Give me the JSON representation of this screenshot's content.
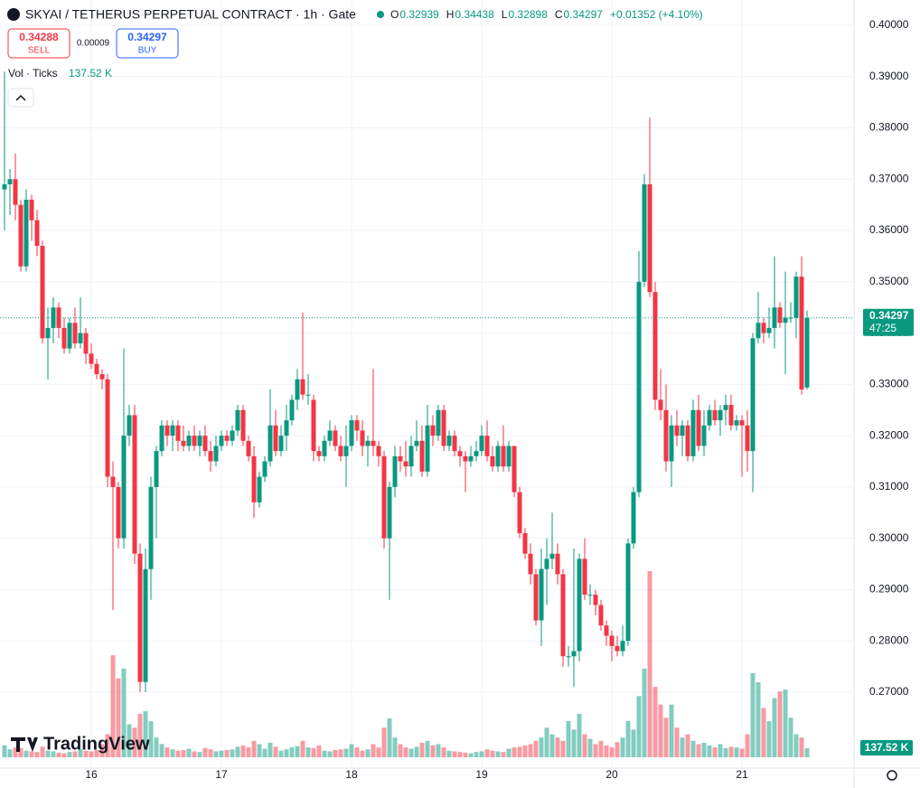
{
  "chart_data": {
    "type": "candlestick",
    "title": "SKYAI / TETHERUS PERPETUAL CONTRACT · 1h · Gate",
    "legend_labels": [
      "O",
      "H",
      "L",
      "C"
    ],
    "change": "+0.01352 (+4.10%)",
    "sell_price": "0.34288",
    "sell_label": "SELL",
    "spread": "0.00009",
    "buy_price": "0.34297",
    "buy_label": "BUY",
    "volume_title": "Vol · Ticks",
    "volume_label": "137.52 K",
    "volume_axis_label": "137.52 K",
    "countdown": "47:25",
    "watermark": "TradingView",
    "up_color": "#089981",
    "down_color": "#f23645",
    "ylim": [
      0.2552,
      0.40493
    ],
    "yticks": [
      {
        "value": 0.27,
        "label": "0.27000"
      },
      {
        "value": 0.28,
        "label": "0.28000"
      },
      {
        "value": 0.29,
        "label": "0.29000"
      },
      {
        "value": 0.3,
        "label": "0.30000"
      },
      {
        "value": 0.31,
        "label": "0.31000"
      },
      {
        "value": 0.32,
        "label": "0.32000"
      },
      {
        "value": 0.33,
        "label": "0.33000"
      },
      {
        "value": 0.34,
        "label": "0.34000"
      },
      {
        "value": 0.35,
        "label": "0.35000"
      },
      {
        "value": 0.36,
        "label": "0.36000"
      },
      {
        "value": 0.37,
        "label": "0.37000"
      },
      {
        "value": 0.38,
        "label": "0.38000"
      },
      {
        "value": 0.39,
        "label": "0.39000"
      },
      {
        "value": 0.4,
        "label": "0.40000"
      }
    ],
    "xticks": [
      {
        "value": 16,
        "label": "16"
      },
      {
        "value": 40,
        "label": "17"
      },
      {
        "value": 64,
        "label": "18"
      },
      {
        "value": 88,
        "label": "19"
      },
      {
        "value": 112,
        "label": "20"
      },
      {
        "value": 136,
        "label": "21"
      }
    ],
    "ohlc": [
      [
        0.368,
        0.391,
        0.36,
        0.369
      ],
      [
        0.369,
        0.372,
        0.363,
        0.37
      ],
      [
        0.37,
        0.375,
        0.362,
        0.365
      ],
      [
        0.365,
        0.366,
        0.352,
        0.353
      ],
      [
        0.353,
        0.368,
        0.352,
        0.366
      ],
      [
        0.366,
        0.367,
        0.358,
        0.362
      ],
      [
        0.362,
        0.364,
        0.355,
        0.357
      ],
      [
        0.357,
        0.358,
        0.338,
        0.339
      ],
      [
        0.339,
        0.345,
        0.331,
        0.341
      ],
      [
        0.341,
        0.347,
        0.338,
        0.345
      ],
      [
        0.345,
        0.346,
        0.339,
        0.341
      ],
      [
        0.341,
        0.343,
        0.336,
        0.337
      ],
      [
        0.337,
        0.343,
        0.336,
        0.342
      ],
      [
        0.342,
        0.345,
        0.337,
        0.338
      ],
      [
        0.338,
        0.347,
        0.337,
        0.34
      ],
      [
        0.34,
        0.341,
        0.334,
        0.336
      ],
      [
        0.336,
        0.338,
        0.333,
        0.334
      ],
      [
        0.334,
        0.335,
        0.331,
        0.332
      ],
      [
        0.332,
        0.333,
        0.329,
        0.331
      ],
      [
        0.331,
        0.332,
        0.31,
        0.312
      ],
      [
        0.312,
        0.315,
        0.286,
        0.31
      ],
      [
        0.31,
        0.311,
        0.298,
        0.3
      ],
      [
        0.3,
        0.337,
        0.298,
        0.32
      ],
      [
        0.32,
        0.326,
        0.318,
        0.324
      ],
      [
        0.324,
        0.326,
        0.295,
        0.297
      ],
      [
        0.297,
        0.299,
        0.27,
        0.272
      ],
      [
        0.272,
        0.298,
        0.27,
        0.294
      ],
      [
        0.294,
        0.312,
        0.288,
        0.31
      ],
      [
        0.31,
        0.318,
        0.3,
        0.317
      ],
      [
        0.317,
        0.323,
        0.316,
        0.322
      ],
      [
        0.322,
        0.323,
        0.318,
        0.32
      ],
      [
        0.32,
        0.323,
        0.317,
        0.322
      ],
      [
        0.322,
        0.323,
        0.317,
        0.319
      ],
      [
        0.319,
        0.322,
        0.317,
        0.318
      ],
      [
        0.318,
        0.321,
        0.317,
        0.32
      ],
      [
        0.32,
        0.322,
        0.317,
        0.318
      ],
      [
        0.318,
        0.321,
        0.316,
        0.32
      ],
      [
        0.32,
        0.322,
        0.316,
        0.317
      ],
      [
        0.317,
        0.319,
        0.313,
        0.315
      ],
      [
        0.315,
        0.32,
        0.314,
        0.318
      ],
      [
        0.318,
        0.321,
        0.317,
        0.32
      ],
      [
        0.32,
        0.321,
        0.318,
        0.319
      ],
      [
        0.319,
        0.322,
        0.318,
        0.321
      ],
      [
        0.321,
        0.326,
        0.32,
        0.325
      ],
      [
        0.325,
        0.326,
        0.318,
        0.319
      ],
      [
        0.319,
        0.32,
        0.315,
        0.316
      ],
      [
        0.316,
        0.318,
        0.304,
        0.307
      ],
      [
        0.307,
        0.313,
        0.306,
        0.312
      ],
      [
        0.312,
        0.316,
        0.311,
        0.315
      ],
      [
        0.315,
        0.329,
        0.314,
        0.322
      ],
      [
        0.322,
        0.325,
        0.316,
        0.317
      ],
      [
        0.317,
        0.322,
        0.316,
        0.32
      ],
      [
        0.32,
        0.326,
        0.317,
        0.323
      ],
      [
        0.323,
        0.328,
        0.322,
        0.327
      ],
      [
        0.327,
        0.333,
        0.325,
        0.331
      ],
      [
        0.331,
        0.344,
        0.327,
        0.328
      ],
      [
        0.328,
        0.332,
        0.326,
        0.328
      ],
      [
        0.327,
        0.328,
        0.315,
        0.317
      ],
      [
        0.317,
        0.318,
        0.315,
        0.316
      ],
      [
        0.316,
        0.32,
        0.315,
        0.319
      ],
      [
        0.319,
        0.323,
        0.318,
        0.321
      ],
      [
        0.321,
        0.322,
        0.317,
        0.318
      ],
      [
        0.318,
        0.32,
        0.315,
        0.316
      ],
      [
        0.316,
        0.322,
        0.31,
        0.318
      ],
      [
        0.318,
        0.324,
        0.317,
        0.323
      ],
      [
        0.323,
        0.324,
        0.319,
        0.321
      ],
      [
        0.321,
        0.323,
        0.316,
        0.318
      ],
      [
        0.318,
        0.32,
        0.314,
        0.319
      ],
      [
        0.319,
        0.333,
        0.316,
        0.318
      ],
      [
        0.318,
        0.319,
        0.314,
        0.316
      ],
      [
        0.316,
        0.317,
        0.298,
        0.3
      ],
      [
        0.3,
        0.311,
        0.288,
        0.31
      ],
      [
        0.31,
        0.318,
        0.308,
        0.316
      ],
      [
        0.316,
        0.318,
        0.313,
        0.315
      ],
      [
        0.315,
        0.319,
        0.312,
        0.314
      ],
      [
        0.314,
        0.32,
        0.312,
        0.318
      ],
      [
        0.318,
        0.323,
        0.317,
        0.319
      ],
      [
        0.319,
        0.322,
        0.312,
        0.313
      ],
      [
        0.313,
        0.326,
        0.312,
        0.322
      ],
      [
        0.322,
        0.324,
        0.318,
        0.32
      ],
      [
        0.32,
        0.326,
        0.319,
        0.325
      ],
      [
        0.325,
        0.326,
        0.317,
        0.318
      ],
      [
        0.318,
        0.321,
        0.317,
        0.32
      ],
      [
        0.32,
        0.321,
        0.316,
        0.317
      ],
      [
        0.317,
        0.318,
        0.314,
        0.316
      ],
      [
        0.316,
        0.317,
        0.309,
        0.315
      ],
      [
        0.315,
        0.318,
        0.314,
        0.316
      ],
      [
        0.316,
        0.319,
        0.315,
        0.317
      ],
      [
        0.317,
        0.322,
        0.316,
        0.32
      ],
      [
        0.32,
        0.323,
        0.315,
        0.316
      ],
      [
        0.316,
        0.318,
        0.313,
        0.314
      ],
      [
        0.314,
        0.319,
        0.313,
        0.318
      ],
      [
        0.318,
        0.322,
        0.313,
        0.314
      ],
      [
        0.314,
        0.319,
        0.313,
        0.318
      ],
      [
        0.318,
        0.318,
        0.308,
        0.309
      ],
      [
        0.309,
        0.31,
        0.3,
        0.301
      ],
      [
        0.301,
        0.302,
        0.296,
        0.297
      ],
      [
        0.297,
        0.299,
        0.291,
        0.293
      ],
      [
        0.293,
        0.294,
        0.283,
        0.284
      ],
      [
        0.284,
        0.298,
        0.279,
        0.294
      ],
      [
        0.294,
        0.3,
        0.287,
        0.296
      ],
      [
        0.296,
        0.305,
        0.294,
        0.297
      ],
      [
        0.297,
        0.299,
        0.291,
        0.293
      ],
      [
        0.293,
        0.294,
        0.275,
        0.277
      ],
      [
        0.277,
        0.279,
        0.275,
        0.277
      ],
      [
        0.277,
        0.298,
        0.271,
        0.278
      ],
      [
        0.278,
        0.297,
        0.276,
        0.296
      ],
      [
        0.296,
        0.3,
        0.288,
        0.289
      ],
      [
        0.289,
        0.291,
        0.287,
        0.289
      ],
      [
        0.289,
        0.29,
        0.285,
        0.287
      ],
      [
        0.287,
        0.288,
        0.282,
        0.283
      ],
      [
        0.283,
        0.284,
        0.279,
        0.281
      ],
      [
        0.281,
        0.282,
        0.276,
        0.279
      ],
      [
        0.279,
        0.281,
        0.277,
        0.278
      ],
      [
        0.278,
        0.283,
        0.277,
        0.28
      ],
      [
        0.28,
        0.3,
        0.279,
        0.299
      ],
      [
        0.299,
        0.31,
        0.298,
        0.309
      ],
      [
        0.309,
        0.356,
        0.308,
        0.35
      ],
      [
        0.35,
        0.371,
        0.349,
        0.369
      ],
      [
        0.369,
        0.382,
        0.347,
        0.348
      ],
      [
        0.348,
        0.35,
        0.325,
        0.327
      ],
      [
        0.327,
        0.333,
        0.323,
        0.325
      ],
      [
        0.325,
        0.33,
        0.313,
        0.315
      ],
      [
        0.315,
        0.324,
        0.31,
        0.322
      ],
      [
        0.322,
        0.325,
        0.318,
        0.32
      ],
      [
        0.32,
        0.323,
        0.316,
        0.322
      ],
      [
        0.322,
        0.323,
        0.315,
        0.316
      ],
      [
        0.316,
        0.327,
        0.315,
        0.325
      ],
      [
        0.325,
        0.328,
        0.317,
        0.318
      ],
      [
        0.318,
        0.325,
        0.316,
        0.322
      ],
      [
        0.322,
        0.326,
        0.321,
        0.325
      ],
      [
        0.325,
        0.327,
        0.322,
        0.323
      ],
      [
        0.323,
        0.326,
        0.32,
        0.325
      ],
      [
        0.325,
        0.328,
        0.322,
        0.326
      ],
      [
        0.326,
        0.328,
        0.321,
        0.322
      ],
      [
        0.322,
        0.324,
        0.321,
        0.323
      ],
      [
        0.323,
        0.324,
        0.312,
        0.322
      ],
      [
        0.322,
        0.325,
        0.313,
        0.317
      ],
      [
        0.317,
        0.34,
        0.309,
        0.339
      ],
      [
        0.339,
        0.348,
        0.338,
        0.342
      ],
      [
        0.342,
        0.343,
        0.338,
        0.34
      ],
      [
        0.34,
        0.345,
        0.339,
        0.341
      ],
      [
        0.341,
        0.355,
        0.337,
        0.345
      ],
      [
        0.345,
        0.346,
        0.341,
        0.342
      ],
      [
        0.342,
        0.352,
        0.332,
        0.343
      ],
      [
        0.343,
        0.346,
        0.342,
        0.343
      ],
      [
        0.343,
        0.352,
        0.339,
        0.351
      ],
      [
        0.351,
        0.355,
        0.328,
        0.329
      ],
      [
        0.32939,
        0.34438,
        0.32898,
        0.34297
      ]
    ],
    "volume": [
      180000,
      120000,
      150000,
      140000,
      100000,
      90000,
      80000,
      160000,
      100000,
      90000,
      70000,
      60000,
      80000,
      90000,
      120000,
      100000,
      90000,
      110000,
      200000,
      350000,
      1550000,
      1200000,
      1350000,
      500000,
      450000,
      660000,
      700000,
      550000,
      300000,
      200000,
      150000,
      120000,
      100000,
      110000,
      130000,
      90000,
      80000,
      140000,
      120000,
      90000,
      100000,
      110000,
      120000,
      160000,
      180000,
      150000,
      250000,
      200000,
      130000,
      220000,
      160000,
      100000,
      120000,
      150000,
      170000,
      250000,
      150000,
      140000,
      180000,
      100000,
      90000,
      110000,
      120000,
      130000,
      200000,
      150000,
      100000,
      120000,
      200000,
      150000,
      450000,
      590000,
      300000,
      200000,
      150000,
      130000,
      160000,
      220000,
      250000,
      180000,
      200000,
      150000,
      100000,
      90000,
      80000,
      70000,
      60000,
      80000,
      90000,
      120000,
      100000,
      90000,
      80000,
      130000,
      150000,
      160000,
      180000,
      200000,
      250000,
      300000,
      450000,
      350000,
      300000,
      250000,
      550000,
      420000,
      660000,
      350000,
      280000,
      200000,
      250000,
      180000,
      150000,
      230000,
      300000,
      550000,
      420000,
      930000,
      1350000,
      2830000,
      1070000,
      800000,
      600000,
      800000,
      450000,
      300000,
      350000,
      250000,
      200000,
      220000,
      180000,
      150000,
      200000,
      140000,
      160000,
      150000,
      130000,
      350000,
      1280000,
      1140000,
      750000,
      550000,
      900000,
      1000000,
      1030000,
      600000,
      350000,
      300000,
      137520
    ]
  }
}
